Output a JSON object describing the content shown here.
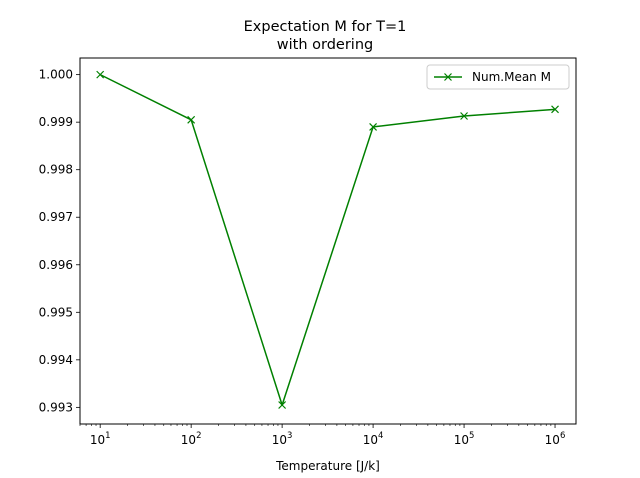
{
  "chart_data": {
    "type": "line",
    "title": "Expectation M for T=1",
    "subtitle": "with ordering",
    "xlabel": "Temperature [J/k]",
    "ylabel": "",
    "xscale": "log",
    "xlim": [
      6,
      1700000
    ],
    "ylim": [
      0.99265,
      1.00035
    ],
    "x_ticks": [
      {
        "value": 10,
        "base": "10",
        "exp": "1"
      },
      {
        "value": 100,
        "base": "10",
        "exp": "2"
      },
      {
        "value": 1000,
        "base": "10",
        "exp": "3"
      },
      {
        "value": 10000,
        "base": "10",
        "exp": "4"
      },
      {
        "value": 100000,
        "base": "10",
        "exp": "5"
      },
      {
        "value": 1000000,
        "base": "10",
        "exp": "6"
      }
    ],
    "y_ticks": [
      {
        "value": 1.0,
        "label": "1.000"
      },
      {
        "value": 0.999,
        "label": "0.999"
      },
      {
        "value": 0.998,
        "label": "0.998"
      },
      {
        "value": 0.997,
        "label": "0.997"
      },
      {
        "value": 0.996,
        "label": "0.996"
      },
      {
        "value": 0.995,
        "label": "0.995"
      },
      {
        "value": 0.994,
        "label": "0.994"
      },
      {
        "value": 0.993,
        "label": "0.993"
      }
    ],
    "grid": false,
    "legend_position": "top-right",
    "series": [
      {
        "name": "Num.Mean M",
        "color": "#008000",
        "marker": "x",
        "x": [
          10,
          100,
          1000,
          10000,
          100000,
          1000000
        ],
        "y": [
          1.0,
          0.99905,
          0.99305,
          0.9989,
          0.99913,
          0.99927
        ]
      }
    ]
  }
}
